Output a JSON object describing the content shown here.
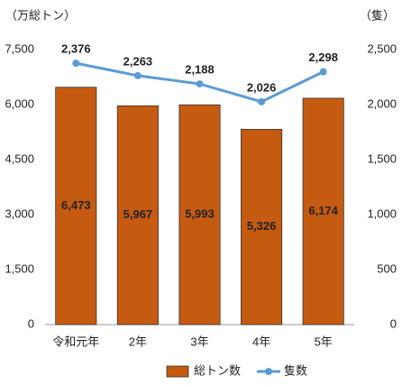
{
  "chart_data": {
    "type": "combo",
    "y_label": "（万総トン）",
    "y2_label": "（隻）",
    "categories": [
      "令和元年",
      "2年",
      "3年",
      "4年",
      "5年"
    ],
    "series": [
      {
        "name": "総トン数",
        "type": "bar",
        "color": "#c55a11",
        "values": [
          6473,
          5967,
          5993,
          5326,
          6174
        ],
        "value_labels": [
          "6,473",
          "5,967",
          "5,993",
          "5,326",
          "6,174"
        ]
      },
      {
        "name": "隻数",
        "type": "line",
        "axis": "y2",
        "color": "#5b9bd5",
        "values": [
          2376,
          2263,
          2188,
          2026,
          2298
        ],
        "value_labels": [
          "2,376",
          "2,263",
          "2,188",
          "2,026",
          "2,298"
        ]
      }
    ],
    "ylim": [
      0,
      7500
    ],
    "yticks": [
      0,
      {
        "value": 1500,
        "label": "1,500"
      },
      {
        "value": 3000,
        "label": "3,000"
      },
      {
        "value": 4500,
        "label": "4,500"
      },
      {
        "value": 6000,
        "label": "6,000"
      },
      {
        "value": 7500,
        "label": "7,500"
      }
    ],
    "y2lim": [
      0,
      2500
    ],
    "y2ticks": [
      0,
      500,
      {
        "value": 1000,
        "label": "1,000"
      },
      {
        "value": 1500,
        "label": "1,500"
      },
      {
        "value": 2000,
        "label": "2,000"
      },
      {
        "value": 2500,
        "label": "2,500"
      }
    ],
    "grid": false,
    "legend": "bottom"
  }
}
